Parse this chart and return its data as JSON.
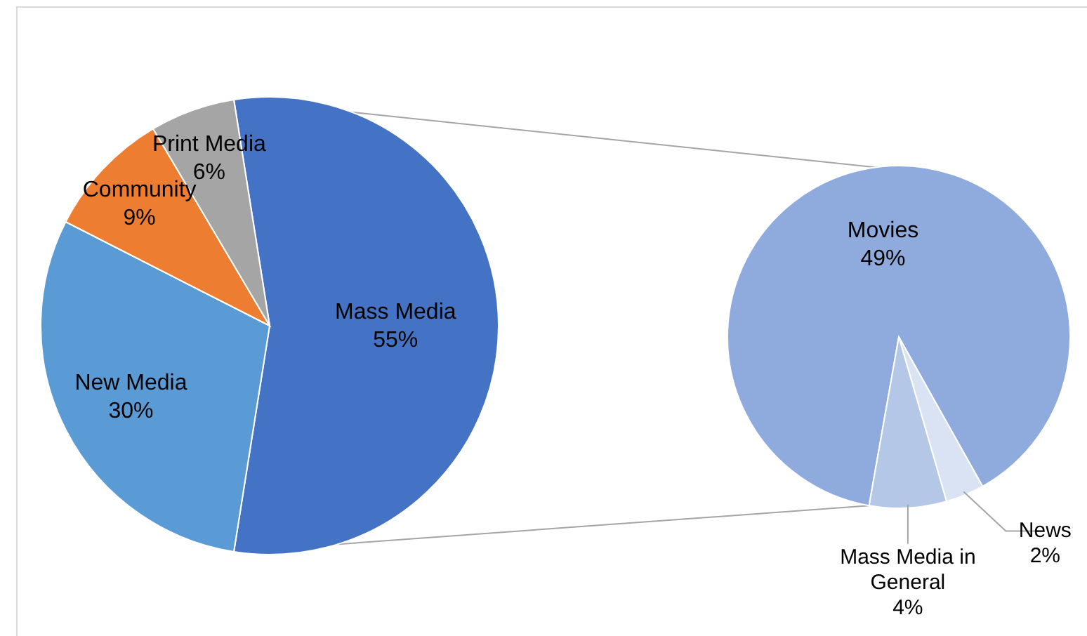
{
  "chart_data": [
    {
      "type": "pie",
      "categories": [
        "Mass Media",
        "New Media",
        "Community",
        "Print Media"
      ],
      "values": [
        55,
        30,
        9,
        6
      ],
      "value_labels": [
        "55%",
        "30%",
        "9%",
        "6%"
      ],
      "colors": [
        "#4472c4",
        "#5b9bd5",
        "#ed7d31",
        "#a5a5a5"
      ]
    },
    {
      "type": "pie",
      "categories": [
        "Movies",
        "News",
        "Mass Media in General"
      ],
      "values": [
        49,
        2,
        4
      ],
      "value_labels": [
        "49%",
        "2%",
        "4%"
      ],
      "colors": [
        "#8faadc",
        "#dae3f3",
        "#b4c7e7"
      ]
    }
  ]
}
